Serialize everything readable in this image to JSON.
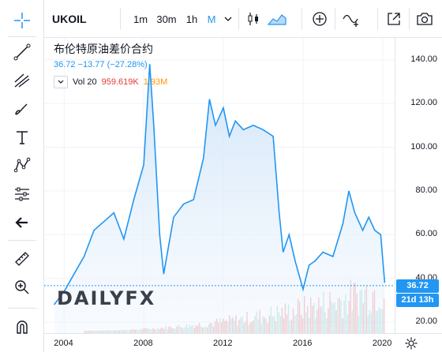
{
  "symbol": "UKOIL",
  "intervals": [
    "1m",
    "30m",
    "1h"
  ],
  "active_interval": "M",
  "legend": {
    "title": "布伦特原油差价合约",
    "last": "36.72",
    "change": "−13.77 (−27.28%)",
    "vol_label": "Vol 20",
    "vol_value1": "959.619K",
    "vol_value2": "1.93M"
  },
  "price_axis": [
    "140.00",
    "120.00",
    "100.00",
    "80.00",
    "60.00",
    "40.00",
    "20.00"
  ],
  "time_axis": [
    "2004",
    "2008",
    "2012",
    "2016",
    "2020"
  ],
  "tags": {
    "price": "36.72",
    "countdown": "21d 13h"
  },
  "logo": {
    "part1": "DAILY",
    "part2": "FX"
  },
  "colors": {
    "line": "#2196f3",
    "fill_top": "#cfe4f8",
    "vol_up": "#e57373",
    "vol_down": "#80cbc4"
  },
  "chart_data": {
    "type": "area",
    "series": [
      {
        "x": [
          2003.5,
          2004,
          2004.5,
          2005,
          2005.5,
          2006,
          2006.5,
          2007,
          2007.5,
          2008,
          2008.3,
          2008.5,
          2008.8,
          2009,
          2009.5,
          2010,
          2010.5,
          2011,
          2011.3,
          2011.6,
          2012,
          2012.3,
          2012.6,
          2013,
          2013.5,
          2014,
          2014.5,
          2014.8,
          2015,
          2015.3,
          2015.6,
          2016,
          2016.3,
          2016.6,
          2017,
          2017.5,
          2018,
          2018.3,
          2018.6,
          2019,
          2019.3,
          2019.6,
          2019.9,
          2020.1
        ],
        "y": [
          28,
          34,
          42,
          50,
          62,
          66,
          70,
          58,
          76,
          92,
          138,
          110,
          60,
          42,
          68,
          74,
          76,
          95,
          122,
          110,
          118,
          105,
          112,
          108,
          110,
          108,
          105,
          70,
          52,
          60,
          48,
          35,
          46,
          48,
          52,
          50,
          65,
          80,
          70,
          62,
          68,
          62,
          60,
          38
        ]
      }
    ],
    "ylim": [
      15,
      150
    ],
    "xlim": [
      2003,
      2020.6
    ]
  }
}
